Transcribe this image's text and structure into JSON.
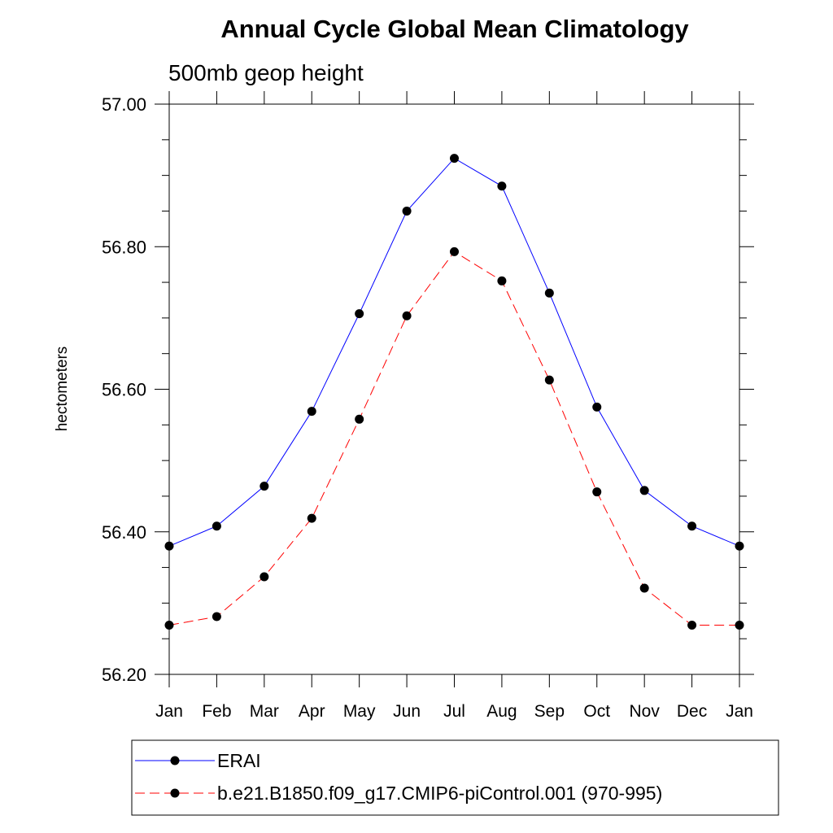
{
  "chart_data": {
    "type": "line",
    "title": "Annual Cycle Global Mean Climatology",
    "subtitle": "500mb geop height",
    "xlabel": "",
    "ylabel": "hectometers",
    "ylim": [
      56.2,
      57.0
    ],
    "yticks": [
      "56.20",
      "56.40",
      "56.60",
      "56.80",
      "57.00"
    ],
    "categories": [
      "Jan",
      "Feb",
      "Mar",
      "Apr",
      "May",
      "Jun",
      "Jul",
      "Aug",
      "Sep",
      "Oct",
      "Nov",
      "Dec",
      "Jan"
    ],
    "series": [
      {
        "name": "ERAI",
        "color": "#0000ff",
        "dash": "solid",
        "marker": "filled-circle",
        "values": [
          56.38,
          56.408,
          56.464,
          56.569,
          56.706,
          56.85,
          56.924,
          56.885,
          56.735,
          56.575,
          56.458,
          56.408,
          56.38
        ]
      },
      {
        "name": "b.e21.B1850.f09_g17.CMIP6-piControl.001 (970-995)",
        "color": "#ff0000",
        "dash": "dashed",
        "marker": "filled-circle",
        "values": [
          56.269,
          56.281,
          56.337,
          56.419,
          56.558,
          56.703,
          56.793,
          56.752,
          56.613,
          56.456,
          56.321,
          56.269,
          56.269
        ]
      }
    ],
    "grid": false,
    "legend_position": "bottom"
  }
}
